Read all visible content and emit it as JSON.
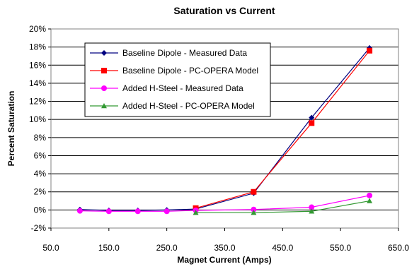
{
  "chart_data": {
    "type": "line",
    "title": "Saturation vs Current",
    "xlabel": "Magnet Current (Amps)",
    "ylabel": "Percent Saturation",
    "xlim": [
      50,
      650
    ],
    "ylim": [
      -2,
      20
    ],
    "x_ticks": [
      "50.0",
      "150.0",
      "250.0",
      "350.0",
      "450.0",
      "550.0",
      "650.0"
    ],
    "y_ticks": [
      "-2%",
      "0%",
      "2%",
      "4%",
      "6%",
      "8%",
      "10%",
      "12%",
      "14%",
      "16%",
      "18%",
      "20%"
    ],
    "grid": "horizontal",
    "legend_position": "top-left",
    "series": [
      {
        "name": "Baseline Dipole - Measured Data",
        "color": "#000080",
        "marker": "diamond",
        "points": [
          [
            100,
            0.05
          ],
          [
            150,
            -0.05
          ],
          [
            200,
            -0.05
          ],
          [
            250,
            0.0
          ],
          [
            300,
            0.1
          ],
          [
            400,
            1.85
          ],
          [
            500,
            10.2
          ],
          [
            600,
            17.9
          ]
        ]
      },
      {
        "name": "Baseline Dipole - PC-OPERA Model",
        "color": "#ff0000",
        "marker": "square",
        "points": [
          [
            300,
            0.2
          ],
          [
            400,
            2.0
          ],
          [
            500,
            9.6
          ],
          [
            600,
            17.6
          ]
        ]
      },
      {
        "name": "Added H-Steel - Measured Data",
        "color": "#ff00ff",
        "marker": "circle",
        "points": [
          [
            100,
            -0.1
          ],
          [
            150,
            -0.15
          ],
          [
            200,
            -0.15
          ],
          [
            250,
            -0.15
          ],
          [
            300,
            -0.05
          ],
          [
            400,
            0.05
          ],
          [
            500,
            0.3
          ],
          [
            600,
            1.6
          ]
        ]
      },
      {
        "name": "Added H-Steel - PC-OPERA Model",
        "color": "#339933",
        "marker": "triangle",
        "points": [
          [
            300,
            -0.3
          ],
          [
            400,
            -0.3
          ],
          [
            500,
            -0.15
          ],
          [
            600,
            1.0
          ]
        ]
      }
    ]
  }
}
